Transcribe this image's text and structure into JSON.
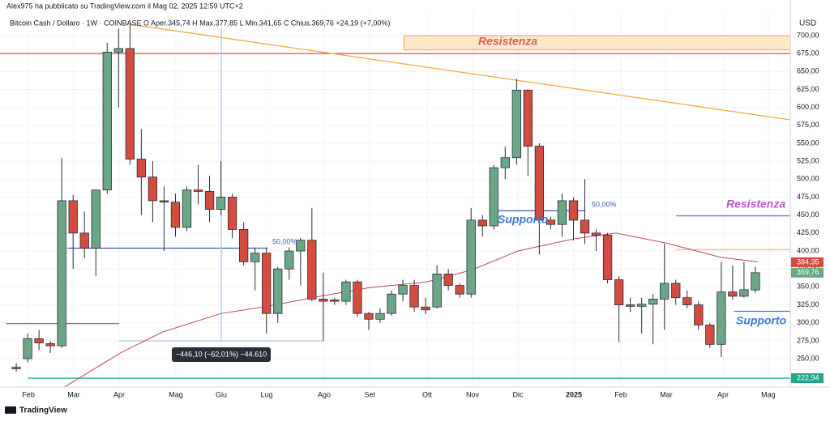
{
  "chart_data": {
    "type": "candlestick",
    "published": "Alex975 ha pubblicato su TradingView.com il Mag 02, 2025 12:59 UTC+2",
    "title": "Bitcoin Cash / Dollaro · 1W · COINBASE  O Aper.345,74  H Max.377,85  L Min.341,65  C Chius.369,76  +24,19 (+7,00%)",
    "currency": "USD",
    "brand": "TradingView",
    "up_color": "#6aa787",
    "down_color": "#d34c3f",
    "open": [
      238,
      250,
      278,
      271,
      268,
      470,
      425,
      404,
      485,
      677,
      682,
      528,
      503,
      470,
      468,
      433,
      485,
      483,
      458,
      475,
      430,
      385,
      397,
      313,
      375,
      400,
      415,
      333,
      332,
      330,
      357,
      313,
      305,
      313,
      340,
      352,
      322,
      322,
      368,
      352,
      340,
      443,
      435,
      516,
      530,
      624,
      546,
      443,
      437,
      470,
      443,
      425,
      422,
      360,
      325,
      323,
      326,
      333,
      355,
      335,
      325,
      297,
      270,
      343,
      337,
      345.74
    ],
    "high": [
      244,
      285,
      290,
      275,
      530,
      478,
      455,
      485,
      690,
      710,
      715,
      570,
      525,
      490,
      480,
      490,
      520,
      505,
      525,
      480,
      440,
      405,
      405,
      378,
      405,
      418,
      460,
      370,
      335,
      360,
      360,
      315,
      320,
      345,
      360,
      360,
      335,
      380,
      375,
      355,
      460,
      450,
      520,
      545,
      640,
      625,
      550,
      448,
      480,
      475,
      500,
      430,
      425,
      365,
      335,
      335,
      340,
      410,
      360,
      345,
      330,
      300,
      385,
      380,
      385,
      377.85
    ],
    "low": [
      232,
      245,
      262,
      258,
      265,
      375,
      390,
      365,
      480,
      600,
      520,
      450,
      440,
      400,
      420,
      428,
      465,
      440,
      450,
      418,
      380,
      345,
      285,
      300,
      360,
      352,
      330,
      275,
      325,
      325,
      308,
      290,
      300,
      310,
      330,
      315,
      312,
      320,
      345,
      335,
      335,
      420,
      430,
      500,
      520,
      505,
      395,
      430,
      420,
      415,
      410,
      400,
      355,
      273,
      315,
      285,
      270,
      290,
      325,
      320,
      290,
      265,
      252,
      332,
      335,
      341.65
    ],
    "close": [
      236,
      278,
      272,
      268,
      470,
      425,
      404,
      485,
      677,
      682,
      528,
      503,
      470,
      468,
      433,
      485,
      483,
      458,
      475,
      430,
      385,
      397,
      313,
      375,
      400,
      415,
      333,
      330,
      330,
      357,
      313,
      305,
      313,
      340,
      352,
      322,
      318,
      368,
      352,
      340,
      443,
      435,
      516,
      530,
      624,
      546,
      443,
      437,
      470,
      443,
      425,
      422,
      360,
      325,
      323,
      326,
      333,
      355,
      335,
      325,
      297,
      270,
      343,
      337,
      346,
      369.76
    ],
    "xlim": [
      -1.43,
      68.07
    ],
    "xticks": [
      {
        "value": 1.07,
        "label": "Feb"
      },
      {
        "value": 5.06,
        "label": "Mar"
      },
      {
        "value": 9.05,
        "label": "Apr"
      },
      {
        "value": 14.04,
        "label": "Mag"
      },
      {
        "value": 18.03,
        "label": "Giu"
      },
      {
        "value": 22.02,
        "label": "Lug"
      },
      {
        "value": 27.08,
        "label": "Ago"
      },
      {
        "value": 31.08,
        "label": "Set"
      },
      {
        "value": 36.14,
        "label": "Ott"
      },
      {
        "value": 40.13,
        "label": "Nov"
      },
      {
        "value": 44.12,
        "label": "Dic"
      },
      {
        "value": 49.04,
        "label": "2025"
      },
      {
        "value": 53.17,
        "label": "Feb"
      },
      {
        "value": 57.16,
        "label": "Mar"
      },
      {
        "value": 62.15,
        "label": "Apr"
      },
      {
        "value": 66.14,
        "label": "Mag"
      }
    ],
    "ylim": [
      210.6,
      733.8
    ],
    "yticks": [
      {
        "value": 250,
        "label": "250,00"
      },
      {
        "value": 275,
        "label": "275,00"
      },
      {
        "value": 300,
        "label": "300,00"
      },
      {
        "value": 325,
        "label": "325,00"
      },
      {
        "value": 350,
        "label": "350,00"
      },
      {
        "value": 375,
        "label": "375,00"
      },
      {
        "value": 400,
        "label": "400,00"
      },
      {
        "value": 425,
        "label": "425,00"
      },
      {
        "value": 450,
        "label": "450,00"
      },
      {
        "value": 475,
        "label": "475,00"
      },
      {
        "value": 500,
        "label": "500,00"
      },
      {
        "value": 525,
        "label": "525,00"
      },
      {
        "value": 550,
        "label": "550,00"
      },
      {
        "value": 575,
        "label": "575,00"
      },
      {
        "value": 600,
        "label": "600,00"
      },
      {
        "value": 625,
        "label": "625,00"
      },
      {
        "value": 650,
        "label": "650,00"
      },
      {
        "value": 675,
        "label": "675,00"
      },
      {
        "value": 700,
        "label": "700,00"
      }
    ],
    "grid": true,
    "moving_average": {
      "color": "#c0485a",
      "x": [
        4.28,
        9.27,
        12.83,
        18.03,
        22.1,
        27.08,
        31.08,
        36.14,
        40.13,
        44.12,
        49.04,
        52.74,
        57.16,
        62.01,
        65.22
      ],
      "values": [
        211,
        259,
        287,
        313,
        323,
        338,
        349,
        357,
        374,
        400,
        417,
        425,
        411,
        391,
        385
      ]
    },
    "zone": {
      "x": [
        34.1,
        68.07
      ],
      "values": [
        680,
        700
      ],
      "fill": "#fde9c9",
      "stroke": "#f0a040"
    },
    "segments": [
      {
        "x": [
          -1.43,
          68.07
        ],
        "values": [
          675,
          675
        ],
        "color": "#e04b4b"
      },
      {
        "x": [
          -0.9,
          9.05
        ],
        "values": [
          299,
          299
        ],
        "color": "#e04b4b"
      },
      {
        "x": [
          1.0,
          68.07
        ],
        "values": [
          222.94,
          222.94
        ],
        "color": "#26b89a"
      },
      {
        "x": [
          58.05,
          68.07
        ],
        "values": [
          402,
          402
        ],
        "color": "#f5c04a"
      },
      {
        "x": [
          58.05,
          68.07
        ],
        "values": [
          449,
          449
        ],
        "color": "#b55bc9"
      },
      {
        "x": [
          4.5,
          22.1
        ],
        "values": [
          404,
          404
        ],
        "color": "#3d5ab8"
      },
      {
        "x": [
          41.7,
          50.0
        ],
        "values": [
          456,
          456
        ],
        "color": "#3d5ab8"
      },
      {
        "x": [
          63.1,
          68.07
        ],
        "values": [
          316,
          316
        ],
        "color": "#3d78d8"
      },
      {
        "x": [
          9.98,
          68.07
        ],
        "values": [
          715.8,
          582.7
        ],
        "color": "#f5a742"
      },
      {
        "x": [
          18.03,
          18.03
        ],
        "values": [
          710,
          274.8
        ],
        "color": "#b6c6ee"
      },
      {
        "x": [
          9.05,
          27.08
        ],
        "values": [
          274.8,
          274.8
        ],
        "color": "#b6c6ee"
      }
    ],
    "price_labels": [
      {
        "value": 384.35,
        "label": "384,35",
        "color": "#d34c3f"
      },
      {
        "value": 369.76,
        "label": "369,76",
        "color": "#6aa787"
      },
      {
        "value": 222.94,
        "label": "222,94",
        "color": "#26a688"
      }
    ],
    "annotations": [
      "Resistenza",
      "Resistenza",
      "Supporto",
      "Supporto",
      "50,00%",
      "50,00%",
      "−446,10 (−62,01%) −44.610"
    ]
  }
}
